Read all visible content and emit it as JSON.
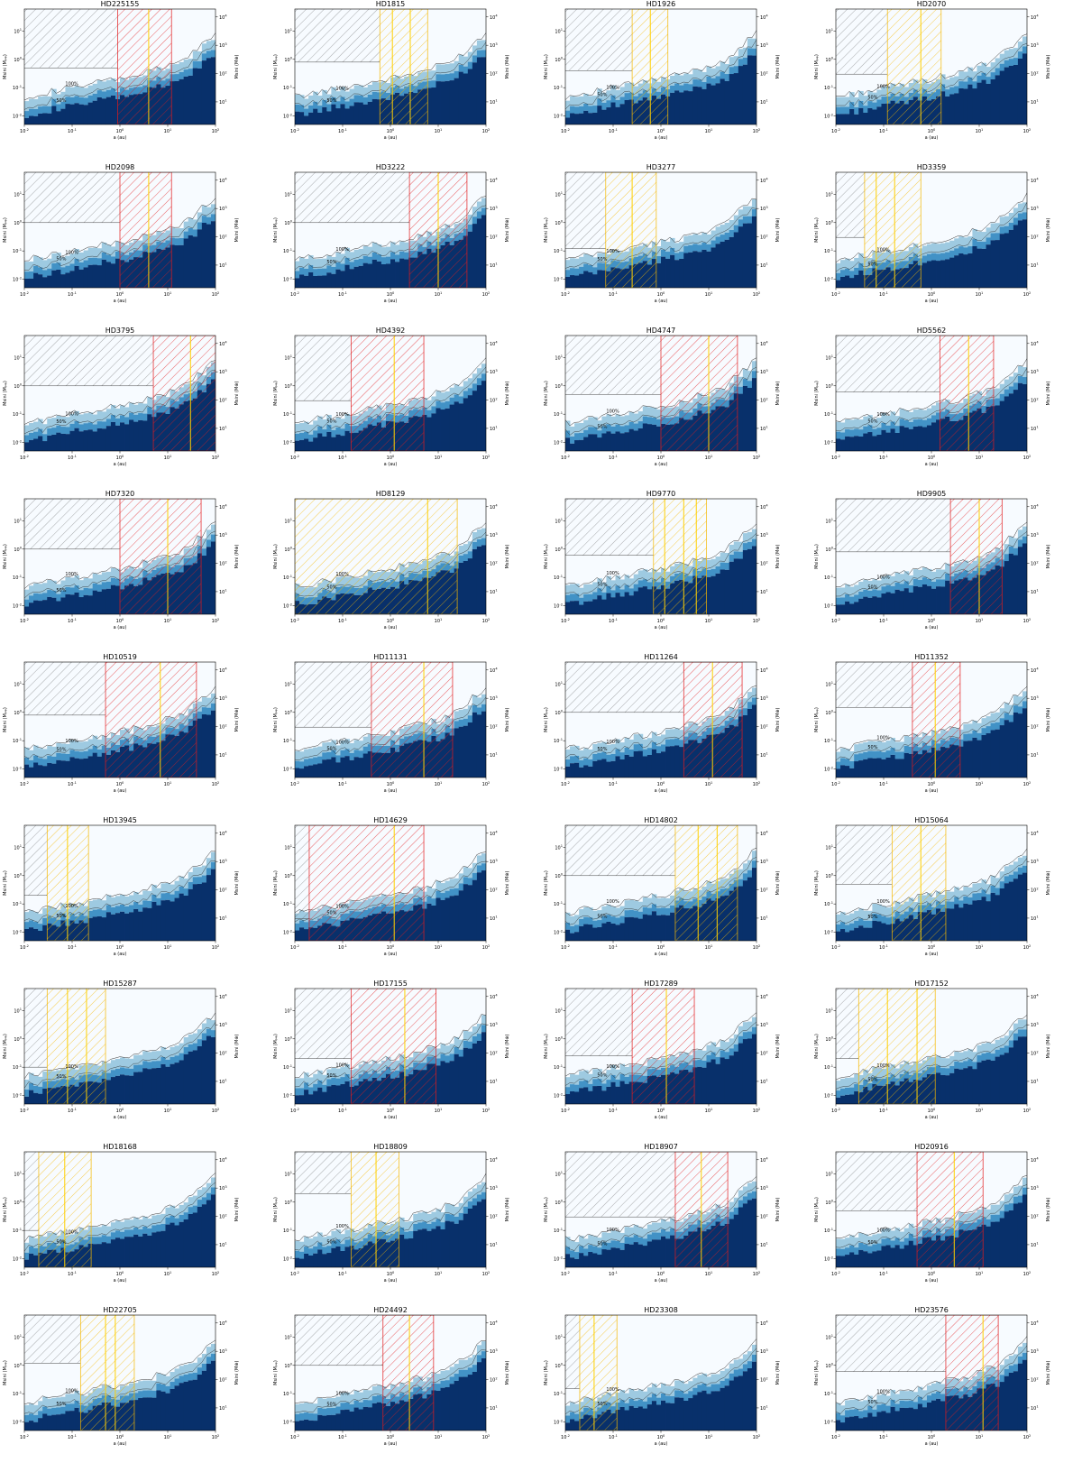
{
  "figure": {
    "layout": {
      "cols": 4,
      "rows": 9
    },
    "common": {
      "xlabel": "a (au)",
      "ylabel_left": "Msini (M$_{Jup}$)",
      "ylabel_right": "Msini (M$_{\\oplus}$)",
      "x_ticks": [
        "10$^{-2}$",
        "10$^{-1}$",
        "10$^{0}$",
        "10$^{1}$",
        "10$^{2}$"
      ],
      "y_ticks_left": [
        "10$^{-2}$",
        "10$^{-1}$",
        "10$^{0}$",
        "10$^{1}$"
      ],
      "y_ticks_right": [
        "10$^{1}$",
        "10$^{2}$",
        "10$^{3}$",
        "10$^{4}$"
      ],
      "contour_labels": [
        "100%",
        "50%"
      ],
      "colors": {
        "completeness_high": "#08306b",
        "completeness_mid": "#4292c6",
        "completeness_low": "#f7fbff",
        "hatch_excluded": "#555555",
        "hatch_red": "#e31a1c",
        "hatch_orange": "#f5b800",
        "line_gold": "#ffd000"
      }
    }
  },
  "chart_data": [
    {
      "type": "heatmap",
      "title": "HD225155",
      "xscale": "log",
      "yscale": "log",
      "xlim": [
        0.01,
        100
      ],
      "ylim": [
        0.005,
        60
      ],
      "hz_band": [
        0.9,
        12
      ],
      "hz_lines": [
        4
      ],
      "hatch": "red",
      "exclusion_y": 0.5
    },
    {
      "type": "heatmap",
      "title": "HD1815",
      "xscale": "log",
      "yscale": "log",
      "xlim": [
        0.01,
        100
      ],
      "ylim": [
        0.005,
        60
      ],
      "hz_band": [
        0.6,
        6
      ],
      "hz_lines": [
        1.1,
        2.6
      ],
      "hatch": "orange",
      "exclusion_y": 0.8
    },
    {
      "type": "heatmap",
      "title": "HD1926",
      "xscale": "log",
      "yscale": "log",
      "xlim": [
        0.01,
        100
      ],
      "ylim": [
        0.005,
        60
      ],
      "hz_band": [
        0.25,
        1.4
      ],
      "hz_lines": [
        0.6
      ],
      "hatch": "orange",
      "exclusion_y": 0.4
    },
    {
      "type": "heatmap",
      "title": "HD2070",
      "xscale": "log",
      "yscale": "log",
      "xlim": [
        0.01,
        100
      ],
      "ylim": [
        0.005,
        60
      ],
      "hz_band": [
        0.12,
        1.6
      ],
      "hz_lines": [
        0.6
      ],
      "hatch": "orange",
      "exclusion_y": 0.3
    },
    {
      "type": "heatmap",
      "title": "HD2098",
      "xscale": "log",
      "yscale": "log",
      "xlim": [
        0.01,
        100
      ],
      "ylim": [
        0.005,
        60
      ],
      "hz_band": [
        1,
        12
      ],
      "hz_lines": [
        4
      ],
      "hatch": "red",
      "exclusion_y": 1
    },
    {
      "type": "heatmap",
      "title": "HD3222",
      "xscale": "log",
      "yscale": "log",
      "xlim": [
        0.01,
        100
      ],
      "ylim": [
        0.005,
        60
      ],
      "hz_band": [
        2.5,
        40
      ],
      "hz_lines": [
        10
      ],
      "hatch": "red",
      "exclusion_y": 1
    },
    {
      "type": "heatmap",
      "title": "HD3277",
      "xscale": "log",
      "yscale": "log",
      "xlim": [
        0.01,
        100
      ],
      "ylim": [
        0.005,
        60
      ],
      "hz_band": [
        0.07,
        0.8
      ],
      "hz_lines": [
        0.25
      ],
      "hatch": "orange",
      "exclusion_y": 0.12
    },
    {
      "type": "heatmap",
      "title": "HD3359",
      "xscale": "log",
      "yscale": "log",
      "xlim": [
        0.01,
        100
      ],
      "ylim": [
        0.005,
        60
      ],
      "hz_band": [
        0.04,
        0.6
      ],
      "hz_lines": [
        0.07,
        0.17
      ],
      "hatch": "orange",
      "exclusion_y": 0.3
    },
    {
      "type": "heatmap",
      "title": "HD3795",
      "xscale": "log",
      "yscale": "log",
      "xlim": [
        0.01,
        100
      ],
      "ylim": [
        0.005,
        60
      ],
      "hz_band": [
        5,
        100
      ],
      "hz_lines": [
        30
      ],
      "hatch": "red",
      "exclusion_y": 1
    },
    {
      "type": "heatmap",
      "title": "HD4392",
      "xscale": "log",
      "yscale": "log",
      "xlim": [
        0.01,
        100
      ],
      "ylim": [
        0.005,
        60
      ],
      "hz_band": [
        0.15,
        5
      ],
      "hz_lines": [
        1.2
      ],
      "hatch": "red",
      "exclusion_y": 0.3
    },
    {
      "type": "heatmap",
      "title": "HD4747",
      "xscale": "log",
      "yscale": "log",
      "xlim": [
        0.01,
        100
      ],
      "ylim": [
        0.005,
        60
      ],
      "hz_band": [
        1,
        40
      ],
      "hz_lines": [
        10
      ],
      "hatch": "red",
      "exclusion_y": 0.5
    },
    {
      "type": "heatmap",
      "title": "HD5562",
      "xscale": "log",
      "yscale": "log",
      "xlim": [
        0.01,
        100
      ],
      "ylim": [
        0.005,
        60
      ],
      "hz_band": [
        1.5,
        20
      ],
      "hz_lines": [
        6
      ],
      "hatch": "red",
      "exclusion_y": 0.6
    },
    {
      "type": "heatmap",
      "title": "HD7320",
      "xscale": "log",
      "yscale": "log",
      "xlim": [
        0.01,
        100
      ],
      "ylim": [
        0.005,
        60
      ],
      "hz_band": [
        1,
        50
      ],
      "hz_lines": [
        10
      ],
      "hatch": "red",
      "exclusion_y": 1
    },
    {
      "type": "heatmap",
      "title": "HD8129",
      "xscale": "log",
      "yscale": "log",
      "xlim": [
        0.01,
        100
      ],
      "ylim": [
        0.005,
        60
      ],
      "hz_band": [
        0.01,
        25
      ],
      "hz_lines": [
        6
      ],
      "hatch": "orange",
      "exclusion_y": null
    },
    {
      "type": "heatmap",
      "title": "HD9770",
      "xscale": "log",
      "yscale": "log",
      "xlim": [
        0.01,
        100
      ],
      "ylim": [
        0.005,
        60
      ],
      "hz_band": [
        0.7,
        9
      ],
      "hz_lines": [
        1.2,
        3,
        5.5
      ],
      "hatch": "orange",
      "exclusion_y": 0.6
    },
    {
      "type": "heatmap",
      "title": "HD9905",
      "xscale": "log",
      "yscale": "log",
      "xlim": [
        0.01,
        100
      ],
      "ylim": [
        0.005,
        60
      ],
      "hz_band": [
        2.5,
        30
      ],
      "hz_lines": [
        10
      ],
      "hatch": "red",
      "exclusion_y": 0.8
    },
    {
      "type": "heatmap",
      "title": "HD10519",
      "xscale": "log",
      "yscale": "log",
      "xlim": [
        0.01,
        100
      ],
      "ylim": [
        0.005,
        60
      ],
      "hz_band": [
        0.5,
        40
      ],
      "hz_lines": [
        7
      ],
      "hatch": "red",
      "exclusion_y": 0.8
    },
    {
      "type": "heatmap",
      "title": "HD11131",
      "xscale": "log",
      "yscale": "log",
      "xlim": [
        0.01,
        100
      ],
      "ylim": [
        0.005,
        60
      ],
      "hz_band": [
        0.4,
        20
      ],
      "hz_lines": [
        5
      ],
      "hatch": "red",
      "exclusion_y": 0.3
    },
    {
      "type": "heatmap",
      "title": "HD11264",
      "xscale": "log",
      "yscale": "log",
      "xlim": [
        0.01,
        100
      ],
      "ylim": [
        0.005,
        60
      ],
      "hz_band": [
        3,
        50
      ],
      "hz_lines": [
        12
      ],
      "hatch": "red",
      "exclusion_y": 1
    },
    {
      "type": "heatmap",
      "title": "HD11352",
      "xscale": "log",
      "yscale": "log",
      "xlim": [
        0.01,
        100
      ],
      "ylim": [
        0.005,
        60
      ],
      "hz_band": [
        0.4,
        4
      ],
      "hz_lines": [
        1.2
      ],
      "hatch": "red",
      "exclusion_y": 1.5
    },
    {
      "type": "heatmap",
      "title": "HD13945",
      "xscale": "log",
      "yscale": "log",
      "xlim": [
        0.01,
        100
      ],
      "ylim": [
        0.005,
        60
      ],
      "hz_band": [
        0.03,
        0.22
      ],
      "hz_lines": [
        0.08
      ],
      "hatch": "orange",
      "exclusion_y": 0.2
    },
    {
      "type": "heatmap",
      "title": "HD14629",
      "xscale": "log",
      "yscale": "log",
      "xlim": [
        0.01,
        100
      ],
      "ylim": [
        0.005,
        60
      ],
      "hz_band": [
        0.02,
        5
      ],
      "hz_lines": [
        1.2
      ],
      "hatch": "red",
      "exclusion_y": 0.03
    },
    {
      "type": "heatmap",
      "title": "HD14802",
      "xscale": "log",
      "yscale": "log",
      "xlim": [
        0.01,
        100
      ],
      "ylim": [
        0.005,
        60
      ],
      "hz_band": [
        2,
        40
      ],
      "hz_lines": [
        6,
        15
      ],
      "hatch": "orange",
      "exclusion_y": 1
    },
    {
      "type": "heatmap",
      "title": "HD15064",
      "xscale": "log",
      "yscale": "log",
      "xlim": [
        0.01,
        100
      ],
      "ylim": [
        0.005,
        60
      ],
      "hz_band": [
        0.15,
        2
      ],
      "hz_lines": [
        0.6
      ],
      "hatch": "orange",
      "exclusion_y": 0.5
    },
    {
      "type": "heatmap",
      "title": "HD15287",
      "xscale": "log",
      "yscale": "log",
      "xlim": [
        0.01,
        100
      ],
      "ylim": [
        0.005,
        60
      ],
      "hz_band": [
        0.03,
        0.5
      ],
      "hz_lines": [
        0.08,
        0.2
      ],
      "hatch": "orange",
      "exclusion_y": 0.1
    },
    {
      "type": "heatmap",
      "title": "HD17155",
      "xscale": "log",
      "yscale": "log",
      "xlim": [
        0.01,
        100
      ],
      "ylim": [
        0.005,
        60
      ],
      "hz_band": [
        0.15,
        9
      ],
      "hz_lines": [
        2
      ],
      "hatch": "red",
      "exclusion_y": 0.2
    },
    {
      "type": "heatmap",
      "title": "HD17289",
      "xscale": "log",
      "yscale": "log",
      "xlim": [
        0.01,
        100
      ],
      "ylim": [
        0.005,
        60
      ],
      "hz_band": [
        0.25,
        5
      ],
      "hz_lines": [
        1.3
      ],
      "hatch": "red",
      "exclusion_y": 0.25
    },
    {
      "type": "heatmap",
      "title": "HD17152",
      "xscale": "log",
      "yscale": "log",
      "xlim": [
        0.01,
        100
      ],
      "ylim": [
        0.005,
        60
      ],
      "hz_band": [
        0.03,
        1.2
      ],
      "hz_lines": [
        0.12,
        0.5
      ],
      "hatch": "orange",
      "exclusion_y": 0.2
    },
    {
      "type": "heatmap",
      "title": "HD18168",
      "xscale": "log",
      "yscale": "log",
      "xlim": [
        0.01,
        100
      ],
      "ylim": [
        0.005,
        60
      ],
      "hz_band": [
        0.02,
        0.25
      ],
      "hz_lines": [
        0.07
      ],
      "hatch": "orange",
      "exclusion_y": 0.1
    },
    {
      "type": "heatmap",
      "title": "HD18809",
      "xscale": "log",
      "yscale": "log",
      "xlim": [
        0.01,
        100
      ],
      "ylim": [
        0.005,
        60
      ],
      "hz_band": [
        0.15,
        1.5
      ],
      "hz_lines": [
        0.5
      ],
      "hatch": "orange",
      "exclusion_y": 2
    },
    {
      "type": "heatmap",
      "title": "HD18907",
      "xscale": "log",
      "yscale": "log",
      "xlim": [
        0.01,
        100
      ],
      "ylim": [
        0.005,
        60
      ],
      "hz_band": [
        2,
        25
      ],
      "hz_lines": [
        7
      ],
      "hatch": "red",
      "exclusion_y": 0.3
    },
    {
      "type": "heatmap",
      "title": "HD20916",
      "xscale": "log",
      "yscale": "log",
      "xlim": [
        0.01,
        100
      ],
      "ylim": [
        0.005,
        60
      ],
      "hz_band": [
        0.5,
        12
      ],
      "hz_lines": [
        3
      ],
      "hatch": "red",
      "exclusion_y": 0.5
    },
    {
      "type": "heatmap",
      "title": "HD22705",
      "xscale": "log",
      "yscale": "log",
      "xlim": [
        0.01,
        100
      ],
      "ylim": [
        0.005,
        60
      ],
      "hz_band": [
        0.15,
        2
      ],
      "hz_lines": [
        0.5,
        0.8
      ],
      "hatch": "orange",
      "exclusion_y": 1.2
    },
    {
      "type": "heatmap",
      "title": "HD24492",
      "xscale": "log",
      "yscale": "log",
      "xlim": [
        0.01,
        100
      ],
      "ylim": [
        0.005,
        60
      ],
      "hz_band": [
        0.7,
        8
      ],
      "hz_lines": [
        2.5
      ],
      "hatch": "red",
      "exclusion_y": 1
    },
    {
      "type": "heatmap",
      "title": "HD23308",
      "xscale": "log",
      "yscale": "log",
      "xlim": [
        0.01,
        100
      ],
      "ylim": [
        0.005,
        60
      ],
      "hz_band": [
        0.02,
        0.12
      ],
      "hz_lines": [
        0.04
      ],
      "hatch": "orange",
      "exclusion_y": 0.15
    },
    {
      "type": "heatmap",
      "title": "HD23576",
      "xscale": "log",
      "yscale": "log",
      "xlim": [
        0.01,
        100
      ],
      "ylim": [
        0.005,
        60
      ],
      "hz_band": [
        2,
        25
      ],
      "hz_lines": [
        12
      ],
      "hatch": "red",
      "exclusion_y": 0.6
    }
  ]
}
